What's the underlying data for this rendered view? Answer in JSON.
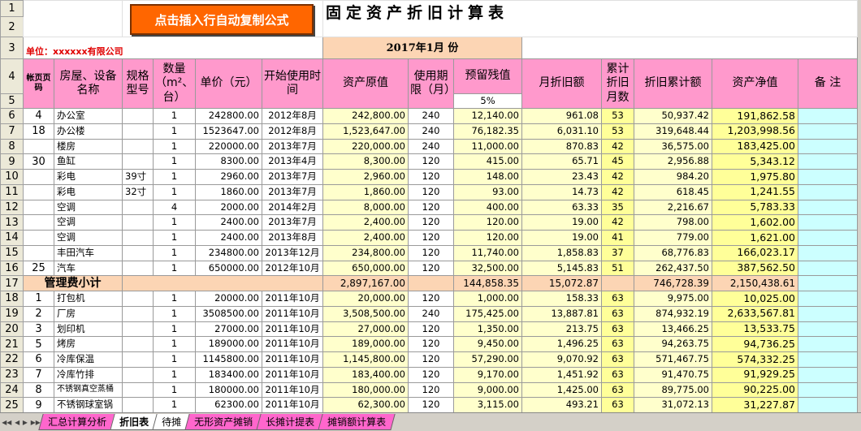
{
  "button": "点击插入行自动复制公式",
  "title": "固定资产折旧计算表",
  "unit": "单位：xxxxxx有限公司",
  "month_header": "2017年1月 份",
  "row_numbers": [
    "1",
    "2",
    "3",
    "4",
    "5",
    "6",
    "7",
    "8",
    "9",
    "10",
    "11",
    "12",
    "13",
    "14",
    "15",
    "16",
    "17",
    "18",
    "19",
    "20",
    "21",
    "22",
    "23",
    "24",
    "25"
  ],
  "headers": [
    "帐页页码",
    "房屋、设备名称",
    "规格型号",
    "数量（m²、台）",
    "单价（元）",
    "开始使用时间",
    "资产原值",
    "使用期限（月）",
    "预留残值",
    "月折旧额",
    "累计折旧月数",
    "折旧累计额",
    "资产净值",
    "备  注"
  ],
  "residual_rate": "5%",
  "rows": [
    [
      "4",
      "办公室",
      null,
      "1",
      "242800.00",
      "2012年8月",
      "242,800.00",
      "240",
      "12,140.00",
      "961.08",
      "53",
      "50,937.42",
      "191,862.58"
    ],
    [
      "18",
      "办公楼",
      null,
      "1",
      "1523647.00",
      "2012年8月",
      "1,523,647.00",
      "240",
      "76,182.35",
      "6,031.10",
      "53",
      "319,648.44",
      "1,203,998.56"
    ],
    [
      null,
      "楼房",
      null,
      "1",
      "220000.00",
      "2013年7月",
      "220,000.00",
      "240",
      "11,000.00",
      "870.83",
      "42",
      "36,575.00",
      "183,425.00"
    ],
    [
      "30",
      "鱼缸",
      null,
      "1",
      "8300.00",
      "2013年4月",
      "8,300.00",
      "120",
      "415.00",
      "65.71",
      "45",
      "2,956.88",
      "5,343.12"
    ],
    [
      null,
      "彩电",
      "39寸",
      "1",
      "2960.00",
      "2013年7月",
      "2,960.00",
      "120",
      "148.00",
      "23.43",
      "42",
      "984.20",
      "1,975.80"
    ],
    [
      null,
      "彩电",
      "32寸",
      "1",
      "1860.00",
      "2013年7月",
      "1,860.00",
      "120",
      "93.00",
      "14.73",
      "42",
      "618.45",
      "1,241.55"
    ],
    [
      null,
      "空调",
      null,
      "4",
      "2000.00",
      "2014年2月",
      "8,000.00",
      "120",
      "400.00",
      "63.33",
      "35",
      "2,216.67",
      "5,783.33"
    ],
    [
      null,
      "空调",
      null,
      "1",
      "2400.00",
      "2013年7月",
      "2,400.00",
      "120",
      "120.00",
      "19.00",
      "42",
      "798.00",
      "1,602.00"
    ],
    [
      null,
      "空调",
      null,
      "1",
      "2400.00",
      "2013年8月",
      "2,400.00",
      "120",
      "120.00",
      "19.00",
      "41",
      "779.00",
      "1,621.00"
    ],
    [
      null,
      "丰田汽车",
      null,
      "1",
      "234800.00",
      "2013年12月",
      "234,800.00",
      "120",
      "11,740.00",
      "1,858.83",
      "37",
      "68,776.83",
      "166,023.17"
    ],
    [
      "25",
      "汽车",
      null,
      "1",
      "650000.00",
      "2012年10月",
      "650,000.00",
      "120",
      "32,500.00",
      "5,145.83",
      "51",
      "262,437.50",
      "387,562.50"
    ],
    "subtotal",
    [
      "1",
      "打包机",
      null,
      "1",
      "20000.00",
      "2011年10月",
      "20,000.00",
      "120",
      "1,000.00",
      "158.33",
      "63",
      "9,975.00",
      "10,025.00"
    ],
    [
      "2",
      "厂房",
      null,
      "1",
      "3508500.00",
      "2011年10月",
      "3,508,500.00",
      "240",
      "175,425.00",
      "13,887.81",
      "63",
      "874,932.19",
      "2,633,567.81"
    ],
    [
      "3",
      "划印机",
      null,
      "1",
      "27000.00",
      "2011年10月",
      "27,000.00",
      "120",
      "1,350.00",
      "213.75",
      "63",
      "13,466.25",
      "13,533.75"
    ],
    [
      "5",
      "烤房",
      null,
      "1",
      "189000.00",
      "2011年10月",
      "189,000.00",
      "120",
      "9,450.00",
      "1,496.25",
      "63",
      "94,263.75",
      "94,736.25"
    ],
    [
      "6",
      "冷库保温",
      null,
      "1",
      "1145800.00",
      "2011年10月",
      "1,145,800.00",
      "120",
      "57,290.00",
      "9,070.92",
      "63",
      "571,467.75",
      "574,332.25"
    ],
    [
      "7",
      "冷库竹排",
      null,
      "1",
      "183400.00",
      "2011年10月",
      "183,400.00",
      "120",
      "9,170.00",
      "1,451.92",
      "63",
      "91,470.75",
      "91,929.25"
    ],
    [
      "8",
      "不锈钢真空蒸桶",
      null,
      "1",
      "180000.00",
      "2011年10月",
      "180,000.00",
      "120",
      "9,000.00",
      "1,425.00",
      "63",
      "89,775.00",
      "90,225.00"
    ],
    [
      "9",
      "不锈钢球室锅",
      null,
      "1",
      "62300.00",
      "2011年10月",
      "62,300.00",
      "120",
      "3,115.00",
      "493.21",
      "63",
      "31,072.13",
      "31,227.87"
    ]
  ],
  "subtotal": {
    "label": "管理费小计",
    "original": "2,897,167.00",
    "residual": "144,858.35",
    "monthly": "15,072.87",
    "accumulated": "746,728.39",
    "net": "2,150,438.61"
  },
  "tabs": [
    "汇总计算分析",
    "折旧表",
    "待摊",
    "无形资产摊销",
    "长摊计提表",
    "摊销额计算表"
  ]
}
